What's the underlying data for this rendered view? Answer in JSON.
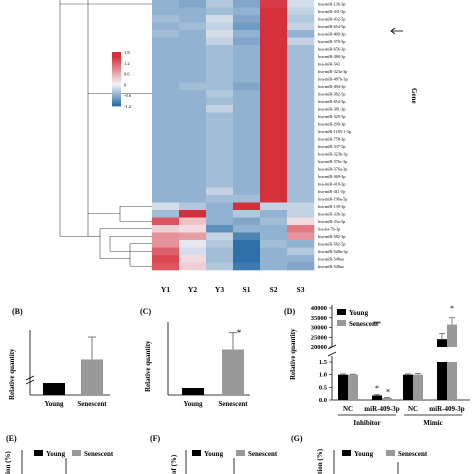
{
  "heatmap": {
    "columns": [
      "Y1",
      "Y2",
      "Y3",
      "S1",
      "S2",
      "S3"
    ],
    "rows": [
      "hsa-miR-136-3p",
      "hsa-miR-431-5p",
      "hsa-miR-432-5p",
      "hsa-miR-654-5p",
      "hsa-miR-409-3p",
      "hsa-miR-370-3p",
      "hsa-miR-656-3p",
      "hsa-miR-380-3p",
      "hsa-miR-543",
      "hsa-miR-323a-3p",
      "hsa-miR-487b-3p",
      "hsa-miR-494-3p",
      "hsa-miR-382-5p",
      "hsa-miR-654-3p",
      "hsa-miR-381-3p",
      "hsa-miR-329-3p",
      "hsa-miR-299-3p",
      "hsa-miR-1185-1-3p",
      "hsa-miR-758-3p",
      "hsa-miR-337-3p",
      "hsa-miR-323b-3p",
      "hsa-miR-376c-3p",
      "hsa-miR-376a-3p",
      "hsa-miR-369-3p",
      "hsa-miR-410-3p",
      "hsa-miR-411-5p",
      "hsa-miR-196a-5p",
      "hsa-miR-139-3p",
      "hsa-miR-33b-3p",
      "hsa-miR-33a-3p",
      "hsa-let-7b-3p",
      "hsa-miR-582-3p",
      "hsa-miR-582-5p",
      "hsa-miR-548n-3p",
      "hsa-miR-548aa",
      "hsa-miR-548aa"
    ],
    "values": [
      [
        -0.6,
        -0.7,
        -0.4,
        -0.7,
        1.5,
        -0.2
      ],
      [
        -0.6,
        -0.6,
        -0.5,
        -0.6,
        1.6,
        -0.3
      ],
      [
        -0.5,
        -0.6,
        -0.2,
        -0.7,
        1.6,
        -0.4
      ],
      [
        -0.6,
        -0.5,
        -0.3,
        -0.8,
        1.6,
        -0.3
      ],
      [
        -0.5,
        -0.6,
        -0.2,
        -0.6,
        1.6,
        -0.6
      ],
      [
        -0.6,
        -0.6,
        -0.3,
        -0.7,
        1.6,
        -0.3
      ],
      [
        -0.6,
        -0.6,
        -0.5,
        -0.6,
        1.6,
        -0.5
      ],
      [
        -0.6,
        -0.6,
        -0.5,
        -0.6,
        1.6,
        -0.5
      ],
      [
        -0.6,
        -0.6,
        -0.5,
        -0.6,
        1.6,
        -0.5
      ],
      [
        -0.6,
        -0.6,
        -0.5,
        -0.6,
        1.6,
        -0.5
      ],
      [
        -0.6,
        -0.6,
        -0.5,
        -0.6,
        1.6,
        -0.5
      ],
      [
        -0.6,
        -0.5,
        -0.5,
        -0.7,
        1.6,
        -0.5
      ],
      [
        -0.6,
        -0.6,
        -0.4,
        -0.6,
        1.6,
        -0.5
      ],
      [
        -0.6,
        -0.6,
        -0.5,
        -0.6,
        1.6,
        -0.5
      ],
      [
        -0.6,
        -0.6,
        -0.3,
        -0.6,
        1.6,
        -0.5
      ],
      [
        -0.6,
        -0.6,
        -0.5,
        -0.6,
        1.6,
        -0.5
      ],
      [
        -0.6,
        -0.6,
        -0.5,
        -0.6,
        1.6,
        -0.5
      ],
      [
        -0.6,
        -0.6,
        -0.5,
        -0.6,
        1.6,
        -0.5
      ],
      [
        -0.6,
        -0.6,
        -0.5,
        -0.6,
        1.6,
        -0.5
      ],
      [
        -0.6,
        -0.6,
        -0.5,
        -0.6,
        1.6,
        -0.5
      ],
      [
        -0.6,
        -0.6,
        -0.5,
        -0.6,
        1.6,
        -0.5
      ],
      [
        -0.6,
        -0.6,
        -0.5,
        -0.6,
        1.6,
        -0.5
      ],
      [
        -0.6,
        -0.6,
        -0.5,
        -0.6,
        1.6,
        -0.5
      ],
      [
        -0.6,
        -0.6,
        -0.5,
        -0.6,
        1.6,
        -0.5
      ],
      [
        -0.6,
        -0.6,
        -0.5,
        -0.6,
        1.6,
        -0.5
      ],
      [
        -0.6,
        -0.6,
        -0.3,
        -0.6,
        1.6,
        -0.5
      ],
      [
        -0.6,
        -0.6,
        -0.5,
        -0.5,
        1.6,
        -0.5
      ],
      [
        -0.2,
        -0.4,
        -0.6,
        1.7,
        -0.3,
        -0.3
      ],
      [
        -0.5,
        1.7,
        -0.6,
        -0.4,
        -0.6,
        -0.3
      ],
      [
        1.3,
        0.4,
        -0.6,
        -0.7,
        -0.5,
        0.2
      ],
      [
        0.3,
        0.2,
        -0.9,
        -0.6,
        -0.6,
        1.0
      ],
      [
        0.8,
        0.7,
        -0.3,
        -1.0,
        -0.6,
        0.8
      ],
      [
        0.8,
        -0.1,
        -0.4,
        -1.2,
        -0.5,
        -0.6
      ],
      [
        1.2,
        -0.2,
        -0.5,
        -1.2,
        -0.6,
        -0.4
      ],
      [
        1.4,
        0.2,
        -0.5,
        -1.2,
        -0.6,
        -0.6
      ],
      [
        1.3,
        0.3,
        -0.4,
        -1.1,
        -0.6,
        -0.7
      ]
    ],
    "colorbar_ticks": [
      "1.8",
      "1.2",
      "0.6",
      "0",
      "-0.6",
      "-1.2"
    ],
    "ylabel": "Gene",
    "colors": {
      "high": "#d62f3c",
      "mid": "#f4f4f7",
      "low": "#2e6fa8"
    }
  },
  "panels": {
    "B": {
      "tag": "(B)",
      "ylabel": "Relative quantity",
      "categories": [
        "Young",
        "Senescent"
      ]
    },
    "C": {
      "tag": "(C)",
      "ylabel": "Relative quantity",
      "categories": [
        "Young",
        "Senescent"
      ],
      "star": "*"
    },
    "D": {
      "tag": "(D)",
      "ylabel": "Relative quantity",
      "legend": [
        "Young",
        "Senescent"
      ],
      "ticks_top": [
        "40000",
        "35000",
        "30000",
        "25000",
        "20000"
      ],
      "ticks_bottom": [
        "1.5",
        "1.0",
        "0.5",
        "0.0"
      ],
      "xticks": [
        "NC",
        "miR-409-3p",
        "NC",
        "miR-409-3p"
      ],
      "groups": [
        "Inhibitor",
        "Mimic"
      ],
      "stars": [
        "*",
        "*",
        "**",
        "*"
      ]
    },
    "E": {
      "tag": "(E)",
      "ylabel": "ion (%)",
      "legend": [
        "Young",
        "Senescent"
      ]
    },
    "F": {
      "tag": "(F)",
      "ylabel": "of (%)",
      "legend": [
        "Young",
        "Senescent"
      ]
    },
    "G": {
      "tag": "(G)",
      "ylabel": "tion (%)",
      "legend": [
        "Young",
        "Senescent"
      ]
    }
  },
  "chart_data": [
    {
      "type": "heatmap",
      "panel": "A",
      "x": [
        "Y1",
        "Y2",
        "Y3",
        "S1",
        "S2",
        "S3"
      ],
      "ylabel": "Gene",
      "zlim": [
        -1.2,
        1.8
      ]
    },
    {
      "type": "bar",
      "panel": "B",
      "categories": [
        "Young",
        "Senescent"
      ],
      "values": [
        1,
        27
      ],
      "errors": [
        0,
        22
      ],
      "ylabel": "Relative quantity"
    },
    {
      "type": "bar",
      "panel": "C",
      "categories": [
        "Young",
        "Senescent"
      ],
      "values": [
        1,
        6.5
      ],
      "errors": [
        0,
        2.4
      ],
      "ylabel": "Relative quantity",
      "annotations": [
        "*"
      ]
    },
    {
      "type": "bar",
      "panel": "D",
      "categories": [
        "NC",
        "miR-409-3p",
        "NC",
        "miR-409-3p"
      ],
      "groups": [
        "Inhibitor",
        "Mimic"
      ],
      "series": [
        {
          "name": "Young",
          "values": [
            1.0,
            0.18,
            1.0,
            24000
          ],
          "errors": [
            0.03,
            0.03,
            0.03,
            3000
          ]
        },
        {
          "name": "Senescent",
          "values": [
            1.0,
            0.08,
            1.0,
            31500
          ],
          "errors": [
            0.02,
            0.02,
            0.05,
            3500
          ]
        }
      ],
      "ylabel": "Relative quantity",
      "ylim_low": [
        0,
        1.5
      ],
      "ylim_high": [
        20000,
        40000
      ]
    }
  ]
}
